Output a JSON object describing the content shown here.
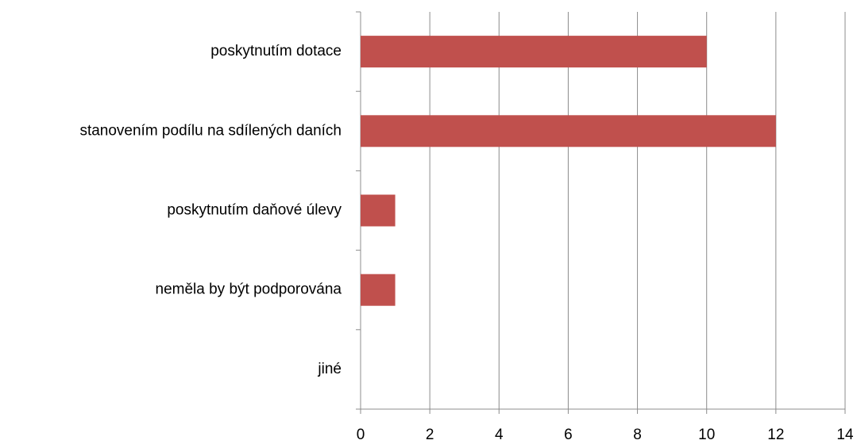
{
  "chart_data": {
    "type": "barh",
    "categories": [
      "poskytnutím dotace",
      "stanovením podílu na sdílených daních",
      "poskytnutím daňové úlevy",
      "neměla by být podporována",
      "jiné"
    ],
    "values": [
      10,
      12,
      1,
      1,
      0
    ],
    "color": "#c0504d",
    "xlim": [
      0,
      14
    ],
    "xticks": [
      0,
      2,
      4,
      6,
      8,
      10,
      12,
      14
    ],
    "grid": true
  }
}
